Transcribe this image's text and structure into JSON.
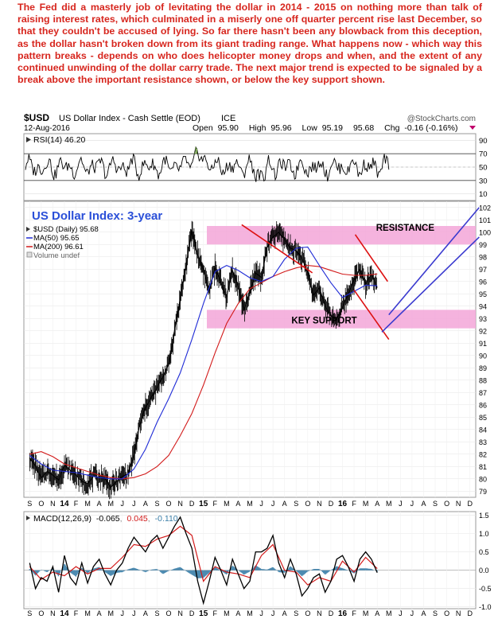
{
  "commentary": "The Fed did a masterly job of levitating the dollar in 2014 - 2015 on nothing more than talk of raising interest rates, which culminated in a miserly one off quarter percent rise last December, so that they couldn't be accused of lying. So far there hasn't been any blowback from this deception, as the dollar hasn't broken down from its giant trading range. What happens now - which way this pattern breaks - depends on who does helicopter money drops and when, and the extent of any continued unwinding of the dollar carry trade. The next major trend is expected to be signaled by a break above the important resistance shown, or below the key support shown.",
  "header": {
    "symbol": "$USD",
    "name": "US Dollar Index - Cash Settle (EOD)",
    "exchange": "ICE",
    "source": "@StockCharts.com",
    "date": "12-Aug-2016",
    "open_label": "Open",
    "open": "95.90",
    "high_label": "High",
    "high": "95.96",
    "low_label": "Low",
    "low": "95.19",
    "close": "95.68",
    "chg_label": "Chg",
    "chg": "-0.16 (-0.16%)"
  },
  "colors": {
    "commentary": "#d7261e",
    "price": "#000000",
    "ma50": "#1f2bd6",
    "ma200": "#d21a1a",
    "zones": "#f3a6d8",
    "trend_red": "#dd1111",
    "trend_blue": "#3a3acf",
    "annotation_blue": "#2a4fd8",
    "macd": "#000000",
    "signal": "#d21a1a",
    "histogram": "#3a7ea8"
  },
  "chart_data": [
    {
      "type": "line",
      "panel": "RSI",
      "label": "RSI(14) 46.20",
      "ylim": [
        0,
        100
      ],
      "yticks": [
        10,
        30,
        50,
        70,
        90
      ],
      "reference_levels": [
        30,
        70
      ],
      "last": 46.2
    },
    {
      "type": "line",
      "panel": "price",
      "title": "US Dollar Index: 3-year",
      "ylim": [
        78.5,
        102.5
      ],
      "yticks": [
        79,
        80,
        81,
        82,
        83,
        84,
        85,
        86,
        87,
        88,
        89,
        90,
        91,
        92,
        93,
        94,
        95,
        96,
        97,
        98,
        99,
        100,
        101,
        102
      ],
      "xticks": [
        "S",
        "O",
        "N",
        "14",
        "F",
        "M",
        "A",
        "M",
        "J",
        "J",
        "A",
        "S",
        "O",
        "N",
        "D",
        "15",
        "F",
        "M",
        "A",
        "M",
        "J",
        "J",
        "A",
        "S",
        "O",
        "N",
        "D",
        "16",
        "F",
        "M",
        "A",
        "M",
        "J",
        "J",
        "A",
        "S",
        "O",
        "N",
        "D"
      ],
      "x_range": [
        "2013-09",
        "2016-12"
      ],
      "legend": {
        "price": "$USD (Daily) 95.68",
        "ma50": "MA(50) 95.65",
        "ma200": "MA(200) 96.61",
        "volume": "Volume undef"
      },
      "series": [
        {
          "name": "$USD (Daily)",
          "x": [
            0,
            0.5,
            1,
            1.5,
            2,
            2.5,
            3,
            3.5,
            4,
            4.5,
            5,
            5.5,
            6,
            6.5,
            7,
            7.5,
            8,
            8.5,
            9,
            9.5,
            10,
            10.5,
            11,
            11.5,
            12,
            12.5,
            13,
            13.5,
            14,
            14.5,
            15,
            15.5,
            16,
            16.5,
            17,
            17.5,
            18,
            18.5,
            19,
            19.5,
            20,
            20.5,
            21,
            21.5,
            22,
            22.5,
            23,
            23.5,
            24,
            24.5,
            25,
            25.5,
            26,
            26.5,
            27,
            27.5,
            28,
            28.5,
            29,
            29.5,
            30,
            30.5,
            31,
            31.5,
            32,
            32.5,
            33,
            33.5,
            34,
            34.5,
            35
          ],
          "values": [
            81.7,
            81.0,
            80.1,
            80.6,
            80.3,
            79.9,
            81.1,
            80.7,
            80.3,
            79.8,
            79.6,
            80.2,
            80.1,
            80.0,
            79.3,
            79.8,
            80.2,
            80.4,
            81.9,
            84.4,
            85.8,
            86.6,
            87.4,
            88.3,
            89.3,
            92.0,
            94.6,
            97.3,
            100.1,
            98.2,
            96.9,
            95.3,
            97.1,
            95.9,
            94.8,
            96.9,
            95.6,
            93.7,
            95.1,
            96.7,
            96.3,
            98.8,
            99.6,
            100.0,
            99.4,
            98.7,
            98.5,
            97.9,
            96.7,
            94.9,
            95.5,
            94.0,
            93.2,
            92.9,
            93.9,
            95.0,
            96.1,
            97.0,
            95.8,
            96.6,
            95.5,
            null,
            null,
            null,
            null,
            null,
            null,
            null,
            null,
            null,
            null
          ]
        },
        {
          "name": "MA(50)",
          "x": [
            0,
            1,
            2,
            3,
            4,
            5,
            6,
            7,
            8,
            9,
            10,
            11,
            12,
            13,
            14,
            15,
            16,
            17,
            18,
            19,
            20,
            21,
            22,
            23,
            24,
            25,
            26,
            27,
            28,
            29,
            30
          ],
          "values": [
            81.9,
            81.2,
            80.7,
            80.6,
            80.5,
            80.3,
            80.1,
            80.0,
            80.0,
            80.8,
            82.4,
            84.6,
            86.5,
            88.6,
            91.3,
            94.2,
            96.8,
            97.3,
            96.9,
            96.3,
            96.0,
            96.4,
            97.8,
            98.7,
            98.8,
            97.3,
            95.9,
            94.7,
            95.2,
            95.7,
            95.65
          ]
        },
        {
          "name": "MA(200)",
          "x": [
            0,
            1,
            2,
            3,
            4,
            5,
            6,
            7,
            8,
            9,
            10,
            11,
            12,
            13,
            14,
            15,
            16,
            17,
            18,
            19,
            20,
            21,
            22,
            23,
            24,
            25,
            26,
            27,
            28,
            29,
            30
          ],
          "values": [
            82.0,
            82.2,
            81.8,
            81.2,
            80.9,
            80.6,
            80.3,
            80.1,
            80.0,
            80.1,
            80.4,
            81.0,
            81.9,
            83.5,
            85.3,
            87.6,
            90.2,
            92.6,
            94.2,
            95.4,
            95.9,
            96.4,
            96.8,
            97.1,
            97.3,
            97.2,
            96.9,
            96.6,
            96.5,
            96.5,
            96.61
          ]
        }
      ],
      "zones": [
        {
          "label": "RESISTANCE",
          "from": 99,
          "to": 100.5
        },
        {
          "label": "KEY SUPPORT",
          "from": 92.2,
          "to": 93.7
        }
      ],
      "trendlines": [
        {
          "color": "red",
          "points": [
            [
              18.3,
              100.6
            ],
            [
              24.4,
              96.7
            ]
          ]
        },
        {
          "color": "red",
          "points": [
            [
              28.1,
              99.8
            ],
            [
              30.9,
              96.0
            ]
          ]
        },
        {
          "color": "red",
          "points": [
            [
              28.0,
              95.3
            ],
            [
              31.0,
              91.3
            ]
          ]
        },
        {
          "color": "blue",
          "points": [
            [
              31.0,
              93.3
            ],
            [
              38.8,
              102.0
            ]
          ]
        },
        {
          "color": "blue",
          "points": [
            [
              30.4,
              91.9
            ],
            [
              38.8,
              99.6
            ]
          ]
        }
      ]
    },
    {
      "type": "line",
      "panel": "MACD",
      "label": "MACD(12,26,9)",
      "macd_value": "-0.065",
      "signal_value": "0.045",
      "histogram_value": "-0.110",
      "ylim": [
        -1.05,
        1.6
      ],
      "yticks": [
        -1.0,
        -0.5,
        0.0,
        0.5,
        1.0,
        1.5
      ],
      "series": [
        {
          "name": "MACD",
          "x": [
            0,
            0.5,
            1,
            1.5,
            2,
            2.5,
            3,
            3.5,
            4,
            4.5,
            5,
            5.5,
            6,
            6.5,
            7,
            7.5,
            8,
            8.5,
            9,
            9.5,
            10,
            10.5,
            11,
            11.5,
            12,
            12.5,
            13,
            13.5,
            14,
            14.5,
            15,
            15.5,
            16,
            16.5,
            17,
            17.5,
            18,
            18.5,
            19,
            19.5,
            20,
            20.5,
            21,
            21.5,
            22,
            22.5,
            23,
            23.5,
            24,
            24.5,
            25,
            25.5,
            26,
            26.5,
            27,
            27.5,
            28,
            28.5,
            29,
            29.5,
            30
          ],
          "values": [
            0.2,
            -0.5,
            -0.2,
            -0.3,
            0.1,
            -0.6,
            0.4,
            -0.2,
            -0.4,
            0.2,
            -0.35,
            0.1,
            0.3,
            -0.1,
            -0.4,
            0.0,
            0.2,
            0.6,
            0.9,
            0.7,
            0.5,
            0.8,
            0.95,
            0.6,
            0.9,
            1.2,
            1.45,
            1.0,
            0.6,
            -0.3,
            -0.9,
            -0.3,
            0.35,
            0.0,
            -0.4,
            0.3,
            -0.1,
            -0.5,
            -0.3,
            0.5,
            0.5,
            0.6,
            0.95,
            0.2,
            -0.2,
            0.3,
            -0.1,
            -0.7,
            -0.5,
            -0.2,
            -0.1,
            -0.6,
            -0.3,
            0.3,
            0.4,
            0.1,
            -0.3,
            0.3,
            0.5,
            0.3,
            -0.065
          ]
        },
        {
          "name": "Signal",
          "x": [
            0,
            1,
            2,
            3,
            4,
            5,
            6,
            7,
            8,
            9,
            10,
            11,
            12,
            13,
            14,
            15,
            16,
            17,
            18,
            19,
            20,
            21,
            22,
            23,
            24,
            25,
            26,
            27,
            28,
            29,
            30
          ],
          "values": [
            0.1,
            -0.25,
            -0.05,
            -0.15,
            0.1,
            -0.1,
            0.05,
            0.05,
            0.35,
            0.7,
            0.65,
            0.85,
            0.95,
            1.2,
            0.95,
            -0.3,
            0.1,
            -0.05,
            -0.1,
            -0.2,
            0.4,
            0.7,
            0.0,
            -0.05,
            -0.4,
            -0.2,
            -0.3,
            0.25,
            -0.05,
            0.35,
            0.045
          ]
        }
      ]
    }
  ]
}
